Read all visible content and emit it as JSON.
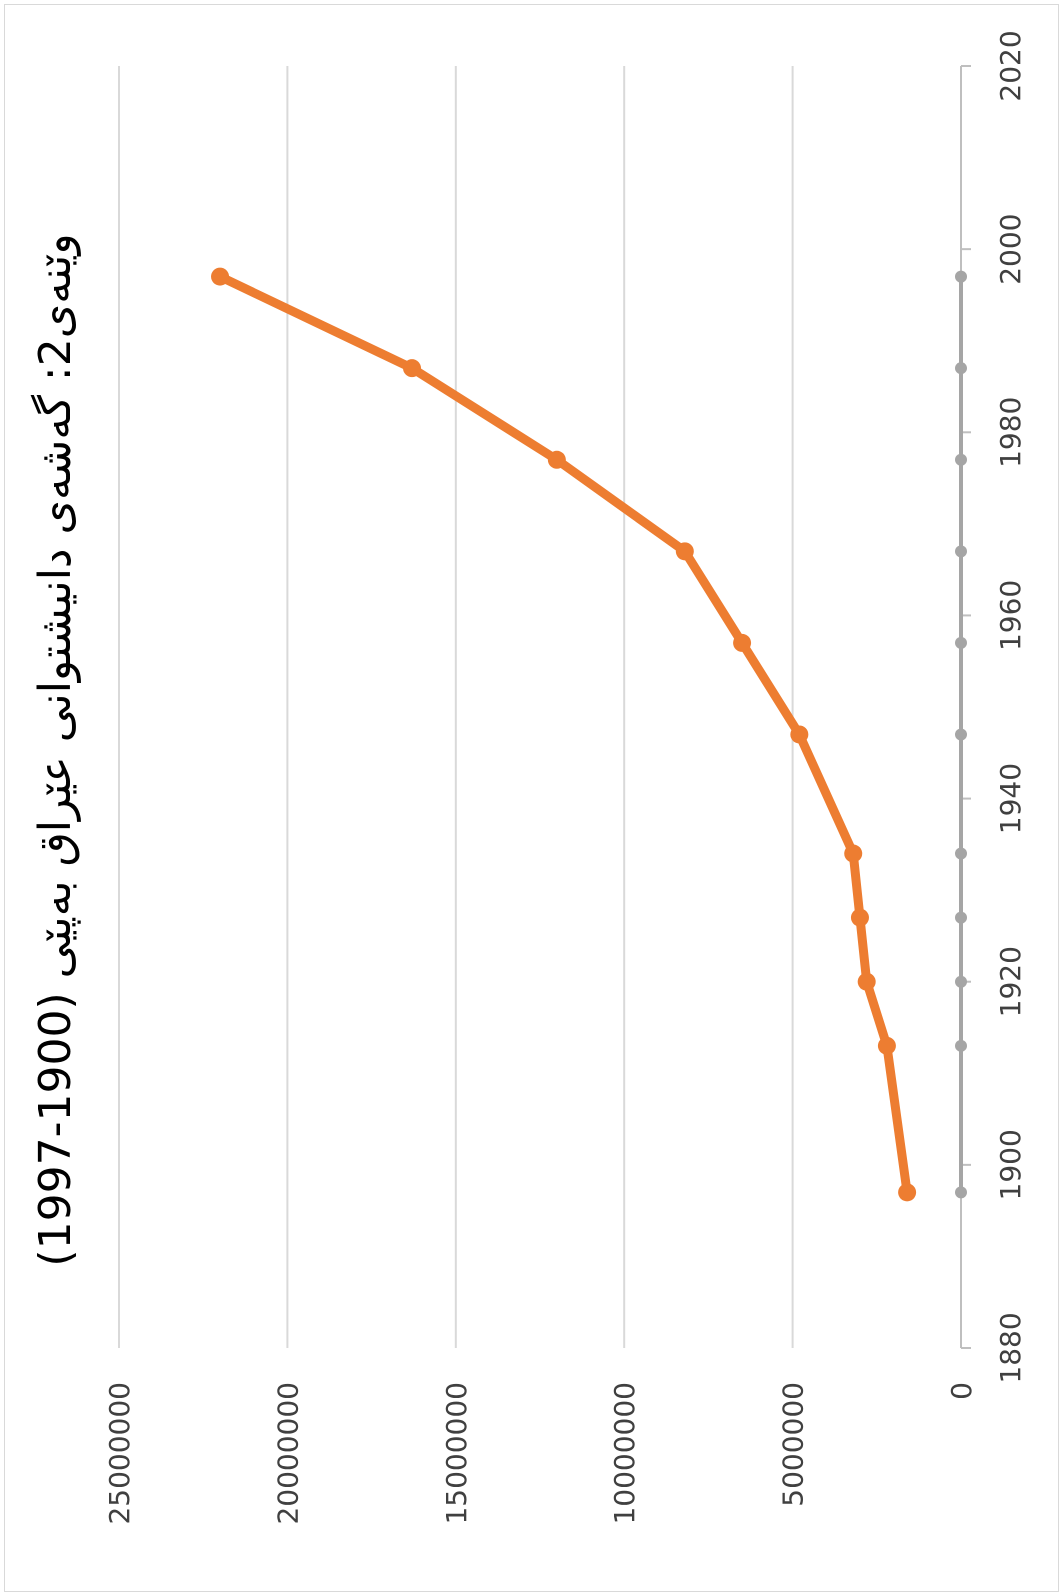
{
  "chart_data": {
    "type": "scatter",
    "title": "وێنەی2: گەشەی دانیشتوانی عێراق بەپێی (1900-1997)",
    "orientation": "rotated-90-clockwise",
    "x_ticks": [
      "1880",
      "1900",
      "1920",
      "1940",
      "1960",
      "1980",
      "2000",
      "2020"
    ],
    "xlim": [
      1880,
      2020
    ],
    "y_ticks": [
      "0",
      "5000000",
      "10000000",
      "15000000",
      "20000000",
      "25000000"
    ],
    "ylim": [
      0,
      25000000
    ],
    "grid": true,
    "series": [
      {
        "color": "#ED7D31",
        "x": [
          1897,
          1913,
          1920,
          1927,
          1934,
          1947,
          1957,
          1967,
          1977,
          1987,
          1997
        ],
        "y": [
          1600000,
          2200000,
          2800000,
          3000000,
          3200000,
          4800000,
          6500000,
          8200000,
          12000000,
          16300000,
          22000000
        ]
      },
      {
        "color": "#A5A5A5",
        "x": [
          1897,
          1913,
          1920,
          1927,
          1934,
          1947,
          1957,
          1967,
          1977,
          1987,
          1997
        ],
        "y": [
          0,
          0,
          0,
          0,
          0,
          0,
          0,
          0,
          0,
          0,
          0
        ]
      }
    ]
  }
}
